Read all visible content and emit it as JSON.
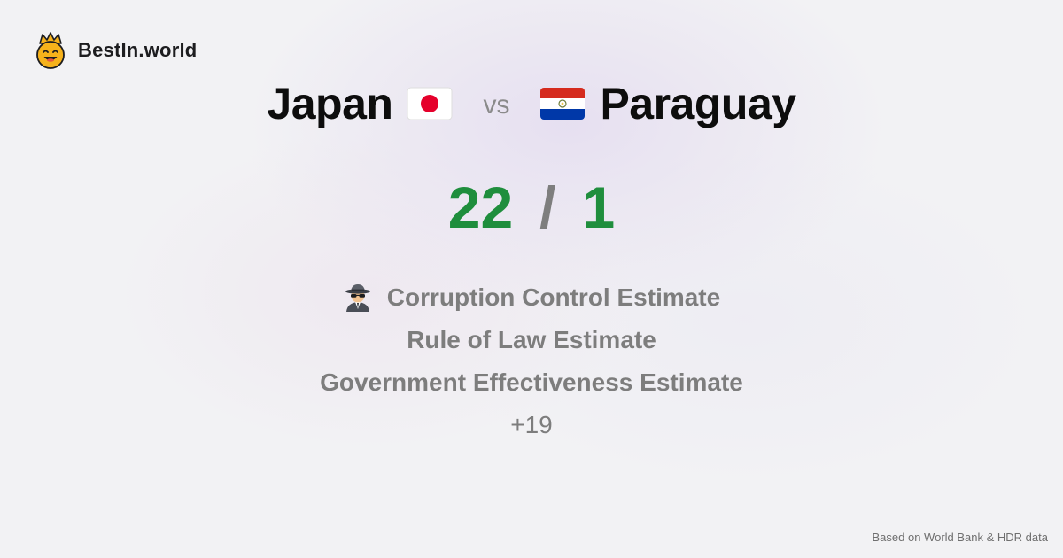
{
  "brand": {
    "name": "BestIn.world",
    "logo_icon": "crown-smiley-icon"
  },
  "comparison": {
    "left_country": "Japan",
    "left_flag_icon": "japan-flag-icon",
    "vs_label": "vs",
    "right_country": "Paraguay",
    "right_flag_icon": "paraguay-flag-icon"
  },
  "score": {
    "left": "22",
    "separator": "/",
    "right": "1"
  },
  "metrics": [
    {
      "label": "Corruption Control Estimate",
      "icon": "spy-icon"
    },
    {
      "label": "Rule of Law Estimate"
    },
    {
      "label": "Government Effectiveness Estimate"
    }
  ],
  "more_count": "+19",
  "footer": {
    "source": "Based on World Bank & HDR data"
  },
  "colors": {
    "score": "#1f8e3d",
    "muted": "#7d7d7d",
    "japan_red": "#e5002b",
    "paraguay_red": "#d52b1e",
    "paraguay_blue": "#0038a8"
  }
}
